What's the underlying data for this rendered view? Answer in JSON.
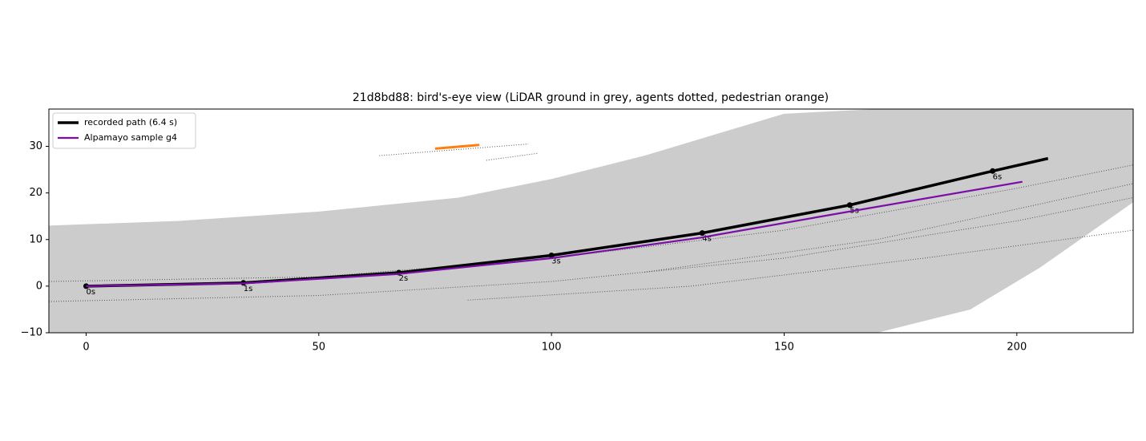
{
  "chart_data": {
    "type": "line",
    "title": "21d8bd88: bird's-eye view (LiDAR ground in grey, agents dotted, pedestrian orange)",
    "xlim": [
      -8,
      225
    ],
    "ylim": [
      -10,
      38
    ],
    "xticks": [
      0,
      50,
      100,
      150,
      200
    ],
    "yticks": [
      {
        "value": -10,
        "label": "−10"
      },
      0,
      10,
      20,
      30
    ],
    "legend": "upper left",
    "ground": {
      "color": "#cccccc",
      "x": [
        -8,
        20,
        50,
        80,
        100,
        120,
        140,
        150,
        170,
        190,
        205,
        225
      ],
      "upper": [
        13,
        14,
        16,
        19,
        23,
        28,
        34,
        37,
        38,
        38,
        38,
        38
      ],
      "lower": [
        -10,
        -10,
        -10,
        -10,
        -10,
        -10,
        -10,
        -10,
        -10,
        -5,
        4,
        18
      ]
    },
    "agent_color": "#555555",
    "agents": [
      {
        "x": [
          -8,
          50,
          100,
          150,
          200,
          225
        ],
        "values": [
          -3.3,
          -2,
          1,
          6,
          14,
          19
        ]
      },
      {
        "x": [
          82,
          130,
          180,
          225
        ],
        "values": [
          -3,
          0,
          6,
          12
        ]
      },
      {
        "x": [
          -8,
          50,
          100,
          150,
          200,
          225
        ],
        "values": [
          1,
          2,
          6,
          12,
          21,
          26
        ]
      },
      {
        "x": [
          120,
          170,
          225
        ],
        "values": [
          3,
          10,
          22
        ]
      },
      {
        "x": [
          63,
          95
        ],
        "values": [
          28,
          30.5
        ]
      },
      {
        "x": [
          86,
          97
        ],
        "values": [
          27,
          28.5
        ]
      }
    ],
    "pedestrian": {
      "color": "#ff7f0e",
      "x": [
        75,
        84.5
      ],
      "values": [
        29.5,
        30.3
      ]
    },
    "series": [
      {
        "name": "recorded path (6.4 s)",
        "color": "#000000",
        "x": [
          0,
          33.8,
          67.2,
          100,
          132.4,
          164.1,
          194.8,
          206.7
        ],
        "values": [
          0,
          0.7,
          2.9,
          6.6,
          11.4,
          17.4,
          24.7,
          27.4
        ],
        "marker_labels": [
          "0s",
          "1s",
          "2s",
          "3s",
          "4s",
          "5s",
          "6s"
        ]
      },
      {
        "name": "Alpamayo sample g4",
        "color": "#7b0ea8",
        "x": [
          0,
          34,
          67,
          100,
          132,
          164,
          201.2
        ],
        "values": [
          0,
          0.6,
          2.6,
          6.0,
          10.4,
          16.0,
          22.4
        ]
      }
    ]
  }
}
